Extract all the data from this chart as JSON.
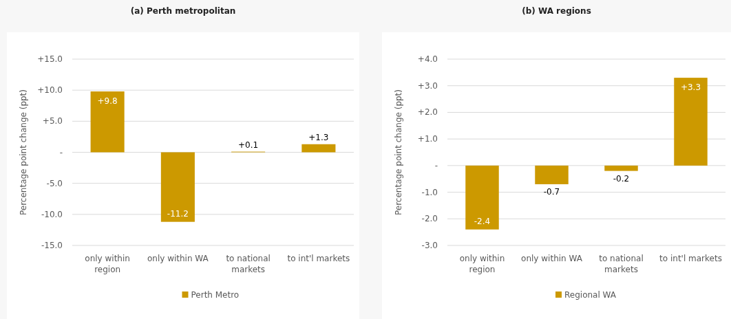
{
  "chart_data": [
    {
      "type": "bar",
      "title": "(a) Perth metropolitan",
      "ylabel": "Percentage point change (ppt)",
      "categories": [
        "only within region",
        "only within WA",
        "to national markets",
        "to int'l markets"
      ],
      "series": [
        {
          "name": "Perth Metro",
          "color": "#cc9900",
          "values": [
            9.8,
            -11.2,
            0.1,
            1.3
          ],
          "value_labels": [
            "+9.8",
            "-11.2",
            "+0.1",
            "+1.3"
          ]
        }
      ],
      "ylim": [
        -15,
        15
      ],
      "yticks": [
        {
          "value": -15,
          "label": "-15.0"
        },
        {
          "value": -10,
          "label": "-10.0"
        },
        {
          "value": -5,
          "label": "-5.0"
        },
        {
          "value": 0,
          "label": "-"
        },
        {
          "value": 5,
          "label": "+5.0"
        },
        {
          "value": 10,
          "label": "+10.0"
        },
        {
          "value": 15,
          "label": "+15.0"
        }
      ],
      "grid": "y",
      "legend": "bottom"
    },
    {
      "type": "bar",
      "title": "(b) WA regions",
      "ylabel": "Percentage point change (ppt)",
      "categories": [
        "only within region",
        "only within WA",
        "to national markets",
        "to int'l markets"
      ],
      "series": [
        {
          "name": "Regional WA",
          "color": "#cc9900",
          "values": [
            -2.4,
            -0.7,
            -0.2,
            3.3
          ],
          "value_labels": [
            "-2.4",
            "-0.7",
            "-0.2",
            "+3.3"
          ]
        }
      ],
      "ylim": [
        -3,
        4
      ],
      "yticks": [
        {
          "value": -3,
          "label": "-3.0"
        },
        {
          "value": -2,
          "label": "-2.0"
        },
        {
          "value": -1,
          "label": "-1.0"
        },
        {
          "value": 0,
          "label": "-"
        },
        {
          "value": 1,
          "label": "+1.0"
        },
        {
          "value": 2,
          "label": "+2.0"
        },
        {
          "value": 3,
          "label": "+3.0"
        },
        {
          "value": 4,
          "label": "+4.0"
        }
      ],
      "grid": "y",
      "legend": "bottom"
    }
  ]
}
